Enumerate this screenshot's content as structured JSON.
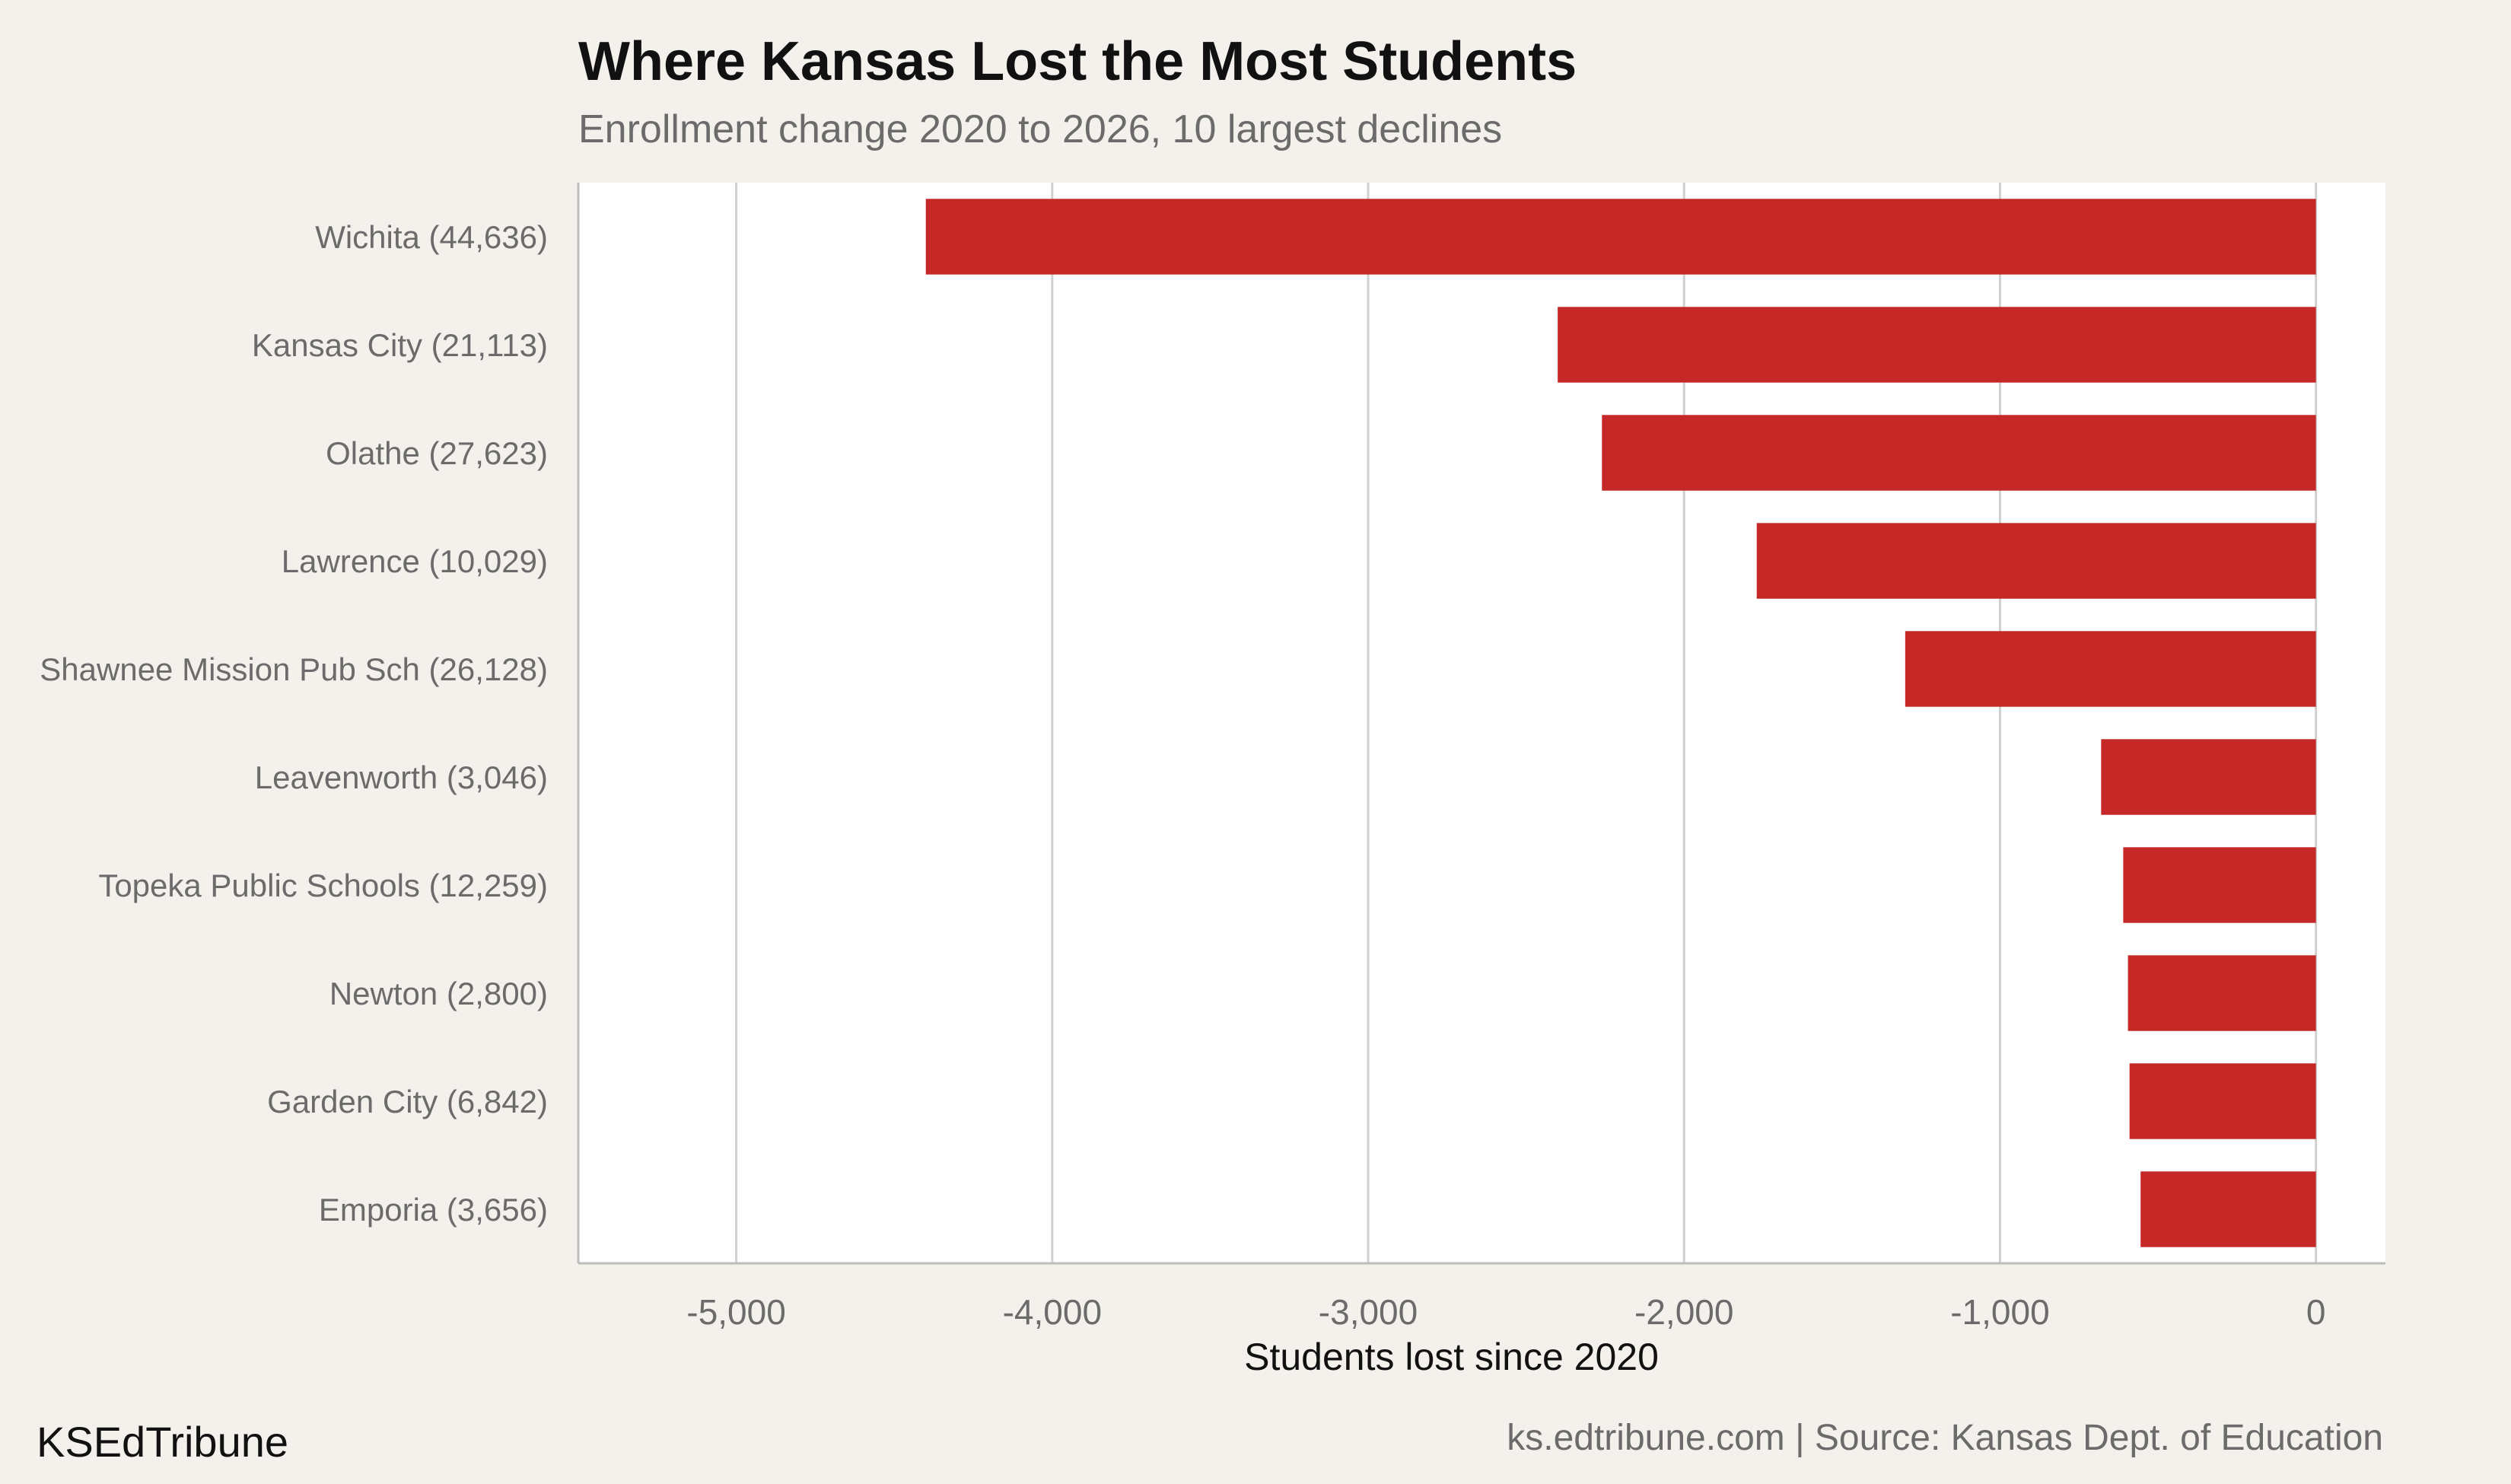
{
  "title": "Where Kansas Lost the Most Students",
  "subtitle": "Enrollment change 2020 to 2026, 10 largest declines",
  "brand": "KSEdTribune",
  "source": "ks.edtribune.com | Source: Kansas Dept. of Education",
  "colors": {
    "background": "#f4f1ec",
    "plot_background": "#ffffff",
    "bar": "#c62828",
    "grid": "#d0d0d0",
    "axis_text": "#6b6b6b"
  },
  "chart_data": {
    "type": "bar",
    "orientation": "horizontal",
    "categories": [
      "Wichita (44,636)",
      "Kansas City (21,113)",
      "Olathe (27,623)",
      "Lawrence (10,029)",
      "Shawnee Mission Pub Sch (26,128)",
      "Leavenworth (3,046)",
      "Topeka Public Schools (12,259)",
      "Newton (2,800)",
      "Garden City (6,842)",
      "Emporia (3,656)"
    ],
    "values": [
      -4400,
      -2400,
      -2260,
      -1770,
      -1300,
      -680,
      -610,
      -595,
      -590,
      -555
    ],
    "xlabel": "Students lost since 2020",
    "ylabel": "",
    "xlim": [
      -5500,
      220
    ],
    "xticks": [
      -5000,
      -4000,
      -3000,
      -2000,
      -1000,
      0
    ],
    "xtick_labels": [
      "-5,000",
      "-4,000",
      "-3,000",
      "-2,000",
      "-1,000",
      "0"
    ],
    "grid": "vertical"
  }
}
